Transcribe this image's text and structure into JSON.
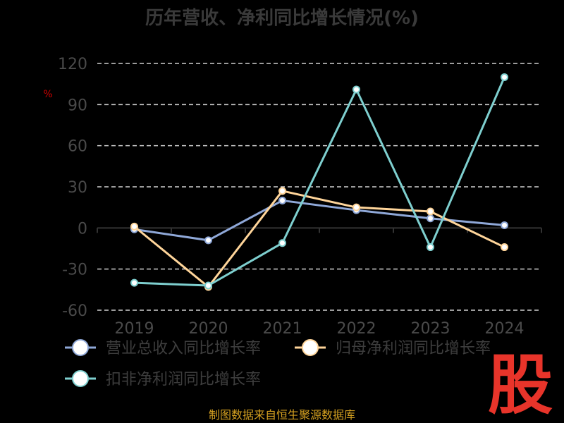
{
  "chart_data": {
    "type": "line",
    "title": "历年营收、净利同比增长情况(%)",
    "ylabel": "%",
    "categories": [
      "2019",
      "2020",
      "2021",
      "2022",
      "2023",
      "2024"
    ],
    "ylim": [
      -60,
      120
    ],
    "yticks": [
      120,
      90,
      60,
      30,
      0,
      -30,
      -60
    ],
    "grid": true,
    "legend_position": "bottom",
    "series": [
      {
        "name": "营业总收入同比增长率",
        "color": "#8fa8d8",
        "values": [
          -1,
          -9,
          20,
          13,
          7,
          2
        ]
      },
      {
        "name": "归母净利润同比增长率",
        "color": "#ffd59a",
        "values": [
          1,
          -43,
          27,
          15,
          12,
          -14
        ]
      },
      {
        "name": "扣非净利润同比增长率",
        "color": "#7ecfcf",
        "values": [
          -40,
          -42,
          -11,
          101,
          -14,
          110
        ]
      }
    ]
  },
  "source_text": "制图数据来自恒生聚源数据库",
  "watermark_text": "股"
}
